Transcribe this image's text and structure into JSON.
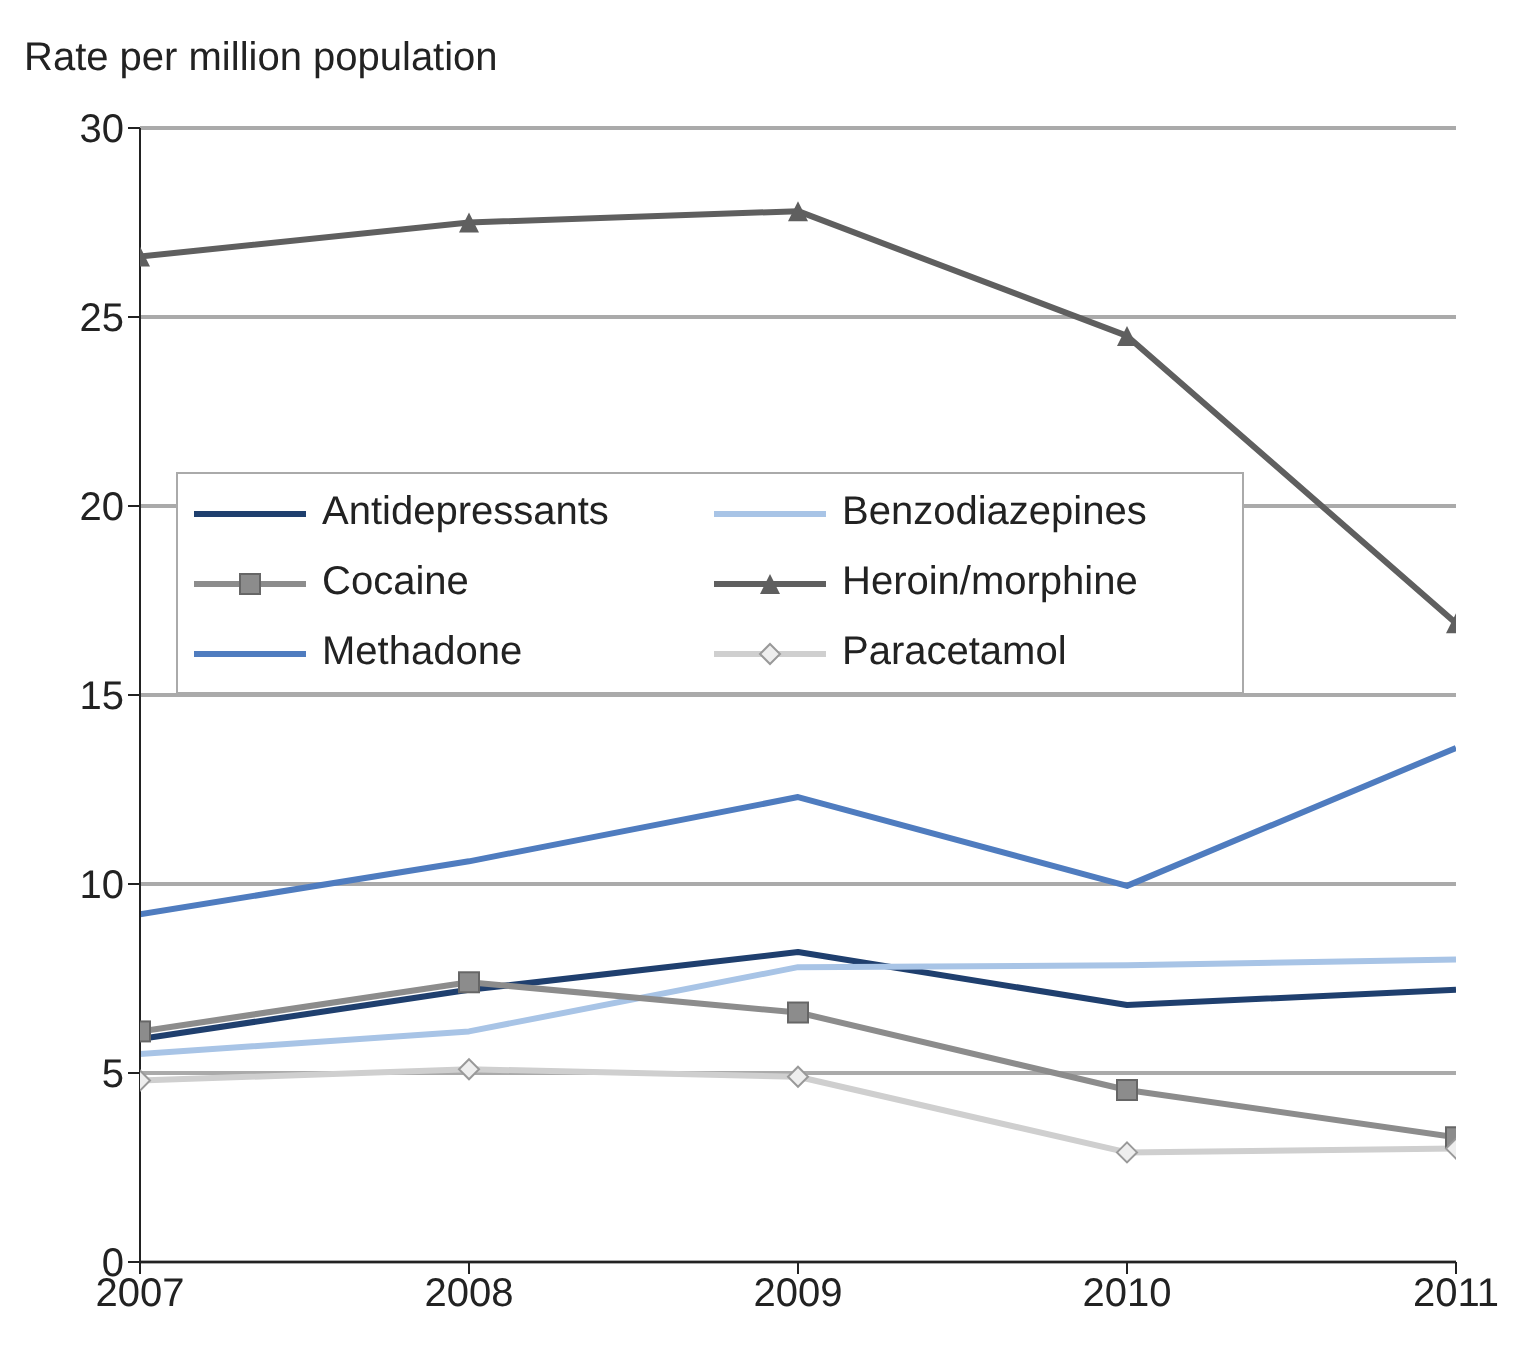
{
  "chart_data": {
    "type": "line",
    "ylabel": "Rate per million population",
    "x": [
      2007,
      2008,
      2009,
      2010,
      2011
    ],
    "xlim": [
      2007,
      2011
    ],
    "xticks": [
      2007,
      2008,
      2009,
      2010,
      2011
    ],
    "ylim": [
      0,
      30
    ],
    "yticks": [
      0,
      5,
      10,
      15,
      20,
      25,
      30
    ],
    "grid": "y",
    "legend": "left",
    "series": [
      {
        "name": "Antidepressants",
        "color": "#1f3f6e",
        "marker": "none",
        "values": [
          5.9,
          7.2,
          8.2,
          6.8,
          7.2
        ]
      },
      {
        "name": "Benzodiazepines",
        "color": "#a8c4e6",
        "marker": "none",
        "values": [
          5.5,
          6.1,
          7.8,
          7.85,
          8.0
        ]
      },
      {
        "name": "Cocaine",
        "color": "#8c8c8c",
        "marker": "square",
        "values": [
          6.1,
          7.4,
          6.6,
          4.55,
          3.3
        ]
      },
      {
        "name": "Heroin/morphine",
        "color": "#5f5f5f",
        "marker": "triangle",
        "values": [
          26.6,
          27.5,
          27.8,
          24.5,
          16.9
        ]
      },
      {
        "name": "Methadone",
        "color": "#4f7cbf",
        "marker": "none",
        "values": [
          9.2,
          10.6,
          12.3,
          9.95,
          13.6
        ]
      },
      {
        "name": "Paracetamol",
        "color": "#cfcfcf",
        "marker": "diamond",
        "values": [
          4.8,
          5.1,
          4.9,
          2.9,
          3.0
        ]
      }
    ]
  }
}
